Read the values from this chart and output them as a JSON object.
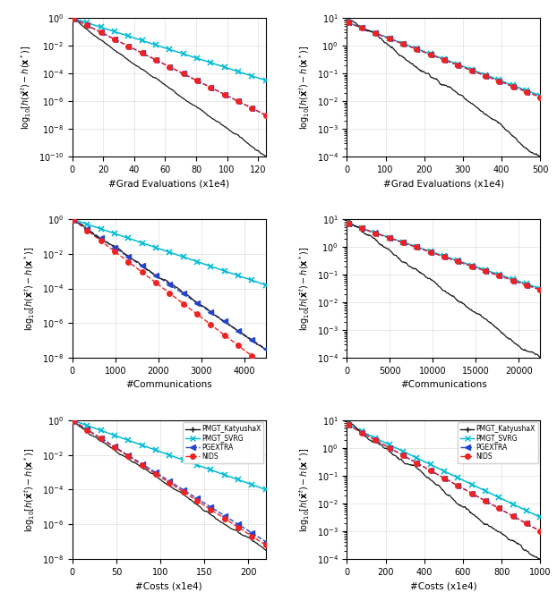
{
  "subplots": [
    {
      "xlabel": "#Grad Evaluations (x1e4)",
      "xlim": [
        0,
        125
      ],
      "ylim_log": [
        -10,
        0
      ],
      "row": 0,
      "col": 0,
      "katyusha": {
        "y_start": 0.0,
        "y_end": -10.0
      },
      "svrg": {
        "y_start": 0.0,
        "y_end": -4.5
      },
      "pgextra": {
        "y_start": 0.0,
        "y_end": -7.0
      },
      "nids": {
        "y_start": 0.0,
        "y_end": -7.0
      }
    },
    {
      "xlabel": "#Grad Evaluations (x1e4)",
      "xlim": [
        0,
        500
      ],
      "ylim_log": [
        -4,
        1
      ],
      "row": 0,
      "col": 1,
      "katyusha": {
        "y_start": 1.0,
        "y_end": -4.0
      },
      "svrg": {
        "y_start": 0.85,
        "y_end": -1.8
      },
      "pgextra": {
        "y_start": 0.85,
        "y_end": -1.85
      },
      "nids": {
        "y_start": 0.85,
        "y_end": -1.85
      }
    },
    {
      "xlabel": "#Communications",
      "xlim": [
        0,
        4500
      ],
      "ylim_log": [
        -8,
        0
      ],
      "row": 1,
      "col": 0,
      "katyusha": {
        "y_start": 0.0,
        "y_end": -7.5
      },
      "svrg": {
        "y_start": 0.0,
        "y_end": -3.8
      },
      "pgextra": {
        "y_start": 0.0,
        "y_end": -7.5
      },
      "nids": {
        "y_start": 0.0,
        "y_end": -8.5
      }
    },
    {
      "xlabel": "#Communications",
      "xlim": [
        0,
        22500
      ],
      "ylim_log": [
        -4,
        1
      ],
      "row": 1,
      "col": 1,
      "katyusha": {
        "y_start": 1.0,
        "y_end": -4.0
      },
      "svrg": {
        "y_start": 0.85,
        "y_end": -1.5
      },
      "pgextra": {
        "y_start": 0.85,
        "y_end": -1.55
      },
      "nids": {
        "y_start": 0.85,
        "y_end": -1.55
      }
    },
    {
      "xlabel": "#Costs (x1e4)",
      "xlim": [
        0,
        220
      ],
      "ylim_log": [
        -8,
        0
      ],
      "row": 2,
      "col": 0,
      "katyusha": {
        "y_start": 0.0,
        "y_end": -7.5
      },
      "svrg": {
        "y_start": 0.0,
        "y_end": -4.0
      },
      "pgextra": {
        "y_start": 0.0,
        "y_end": -7.0
      },
      "nids": {
        "y_start": 0.0,
        "y_end": -7.2
      }
    },
    {
      "xlabel": "#Costs (x1e4)",
      "xlim": [
        0,
        1000
      ],
      "ylim_log": [
        -4,
        1
      ],
      "row": 2,
      "col": 1,
      "katyusha": {
        "y_start": 1.0,
        "y_end": -4.0
      },
      "svrg": {
        "y_start": 0.85,
        "y_end": -2.5
      },
      "pgextra": {
        "y_start": 0.85,
        "y_end": -3.0
      },
      "nids": {
        "y_start": 0.85,
        "y_end": -3.0
      }
    }
  ],
  "ylabel": "log$_{10}$[$h(\\bar{\\mathbf{x}}^t) - h(\\mathbf{x}^*)$]",
  "colors": {
    "katyusha": "#111111",
    "svrg": "#00bcd4",
    "pgextra": "#2244cc",
    "nids": "#ee2222"
  },
  "legend": {
    "katyusha": "PMGT_KatyushaX",
    "svrg": "PMGT_SVRG",
    "pgextra": "PGEXTRA",
    "nids": "NIDS"
  },
  "noise_seed": 42
}
